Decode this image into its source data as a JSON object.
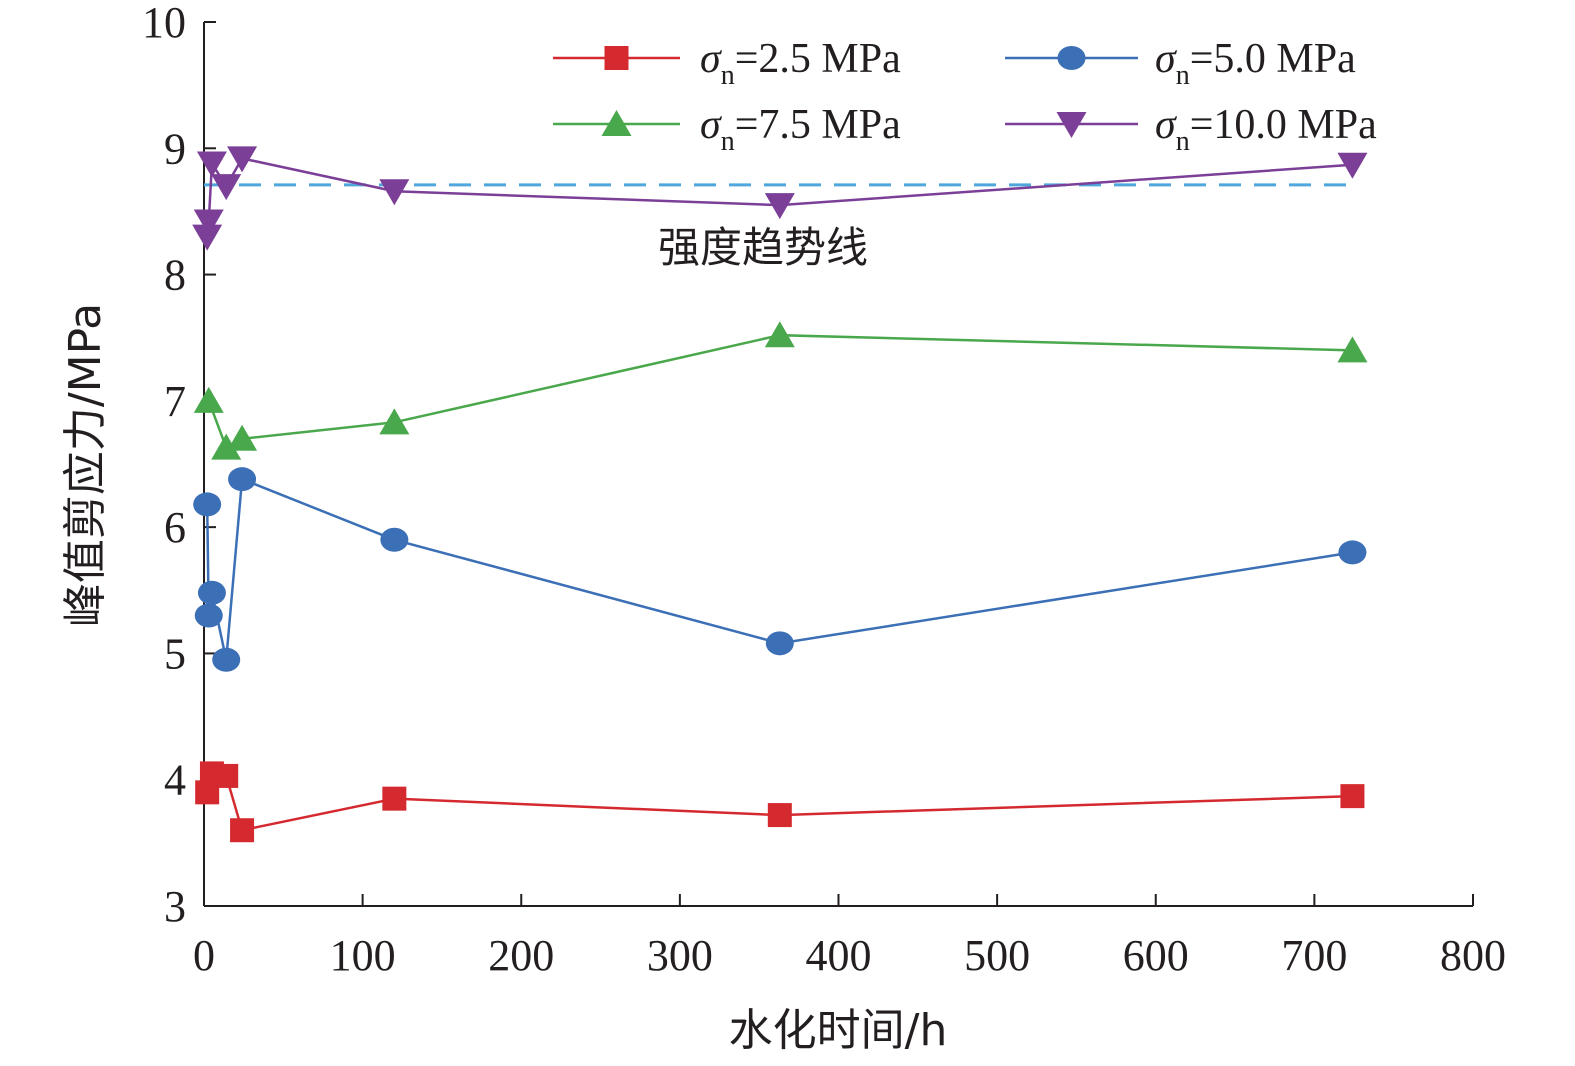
{
  "chart_data": {
    "type": "line",
    "xlabel": "水化时间/h",
    "ylabel": "峰值剪应力/MPa",
    "xlim": [
      0,
      800
    ],
    "ylim": [
      3,
      10
    ],
    "xticks": [
      0,
      100,
      200,
      300,
      400,
      500,
      600,
      700,
      800
    ],
    "yticks": [
      3,
      4,
      5,
      6,
      7,
      8,
      9,
      10
    ],
    "grid": false,
    "legend_position": "top-right",
    "series": [
      {
        "name": "σn=2.5 MPa",
        "name_symbol": "σ",
        "name_sub": "n",
        "name_rest": "=2.5 MPa",
        "color": "#d42a2f",
        "marker": "square",
        "x": [
          2,
          5,
          14,
          24,
          120,
          363,
          724
        ],
        "y": [
          3.9,
          4.05,
          4.03,
          3.6,
          3.85,
          3.72,
          3.87
        ]
      },
      {
        "name": "σn=5.0 MPa",
        "name_symbol": "σ",
        "name_sub": "n",
        "name_rest": "=5.0 MPa",
        "color": "#3b6fb6",
        "marker": "circle",
        "x": [
          2,
          3,
          5,
          14,
          24,
          120,
          363,
          724
        ],
        "y": [
          6.18,
          5.3,
          5.48,
          4.95,
          6.38,
          5.9,
          5.08,
          5.8
        ]
      },
      {
        "name": "σn=7.5 MPa",
        "name_symbol": "σ",
        "name_sub": "n",
        "name_rest": "=7.5 MPa",
        "color": "#4aa84c",
        "marker": "triangle-up",
        "x": [
          3,
          14,
          24,
          120,
          363,
          724
        ],
        "y": [
          7.0,
          6.63,
          6.7,
          6.83,
          7.52,
          7.4
        ]
      },
      {
        "name": "σn=10.0 MPa",
        "name_symbol": "σ",
        "name_sub": "n",
        "name_rest": "=10.0 MPa",
        "color": "#7b3f98",
        "marker": "triangle-down",
        "x": [
          2,
          3,
          5,
          14,
          24,
          120,
          363,
          724
        ],
        "y": [
          8.3,
          8.42,
          8.88,
          8.7,
          8.92,
          8.66,
          8.55,
          8.87
        ]
      }
    ],
    "reference_line": {
      "label": "强度趋势线",
      "y": 8.71,
      "x_range": [
        0,
        724
      ],
      "color": "#4ea6dc",
      "style": "dashed"
    }
  }
}
